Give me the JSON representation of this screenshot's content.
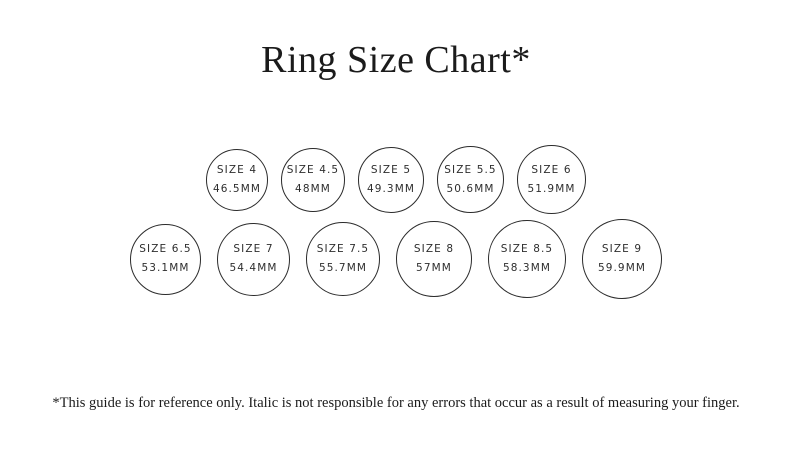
{
  "page": {
    "title": "Ring Size Chart*",
    "footnote": "*This guide is for reference only. Italic is not responsible for any errors that occur as a result of measuring your finger."
  },
  "colors": {
    "background": "#ffffff",
    "text": "#1b1b1b",
    "circle_stroke": "#2b2b2b",
    "label_text": "#2e2e2e"
  },
  "rows": [
    {
      "items": [
        {
          "size_label": "SIZE 4",
          "diameter_label": "46.5MM",
          "mm": 46.5
        },
        {
          "size_label": "SIZE 4.5",
          "diameter_label": "48MM",
          "mm": 48
        },
        {
          "size_label": "SIZE 5",
          "diameter_label": "49.3MM",
          "mm": 49.3
        },
        {
          "size_label": "SIZE 5.5",
          "diameter_label": "50.6MM",
          "mm": 50.6
        },
        {
          "size_label": "SIZE 6",
          "diameter_label": "51.9MM",
          "mm": 51.9
        }
      ]
    },
    {
      "items": [
        {
          "size_label": "SIZE 6.5",
          "diameter_label": "53.1MM",
          "mm": 53.1
        },
        {
          "size_label": "SIZE 7",
          "diameter_label": "54.4MM",
          "mm": 54.4
        },
        {
          "size_label": "SIZE 7.5",
          "diameter_label": "55.7MM",
          "mm": 55.7
        },
        {
          "size_label": "SIZE 8",
          "diameter_label": "57MM",
          "mm": 57
        },
        {
          "size_label": "SIZE 8.5",
          "diameter_label": "58.3MM",
          "mm": 58.3
        },
        {
          "size_label": "SIZE 9",
          "diameter_label": "59.9MM",
          "mm": 59.9
        }
      ]
    }
  ]
}
